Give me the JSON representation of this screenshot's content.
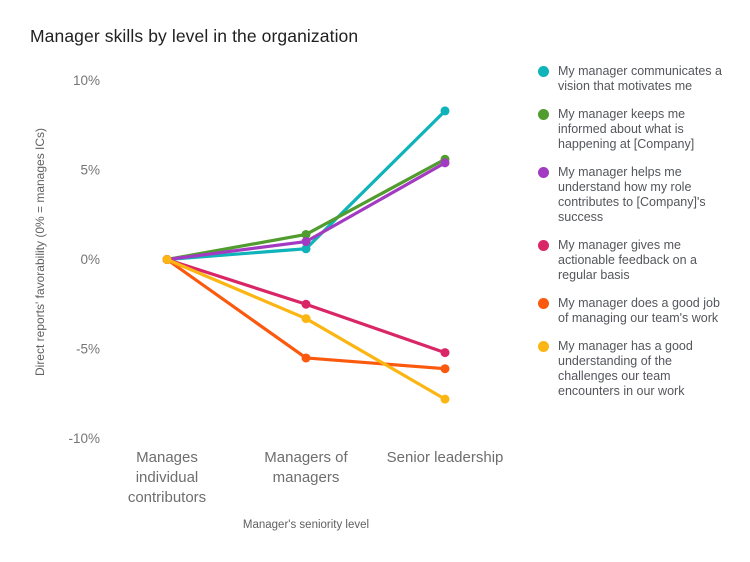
{
  "title": "Manager skills by level in the organization",
  "chart_data": {
    "type": "line",
    "title": "Manager skills by level in the organization",
    "xlabel": "Manager's seniority level",
    "ylabel": "Direct reports' favorability (0% = manages ICs)",
    "categories": [
      "Manages individual contributors",
      "Managers of managers",
      "Senior leadership"
    ],
    "category_lines": [
      [
        "Manages",
        "individual",
        "contributors"
      ],
      [
        "Managers of",
        "managers"
      ],
      [
        "Senior leadership"
      ]
    ],
    "ylim": [
      -10,
      10
    ],
    "yticks": [
      {
        "value": 10,
        "label": "10%"
      },
      {
        "value": 5,
        "label": "5%"
      },
      {
        "value": 0,
        "label": "0%"
      },
      {
        "value": -5,
        "label": "-5%"
      },
      {
        "value": -10,
        "label": "-10%"
      }
    ],
    "unit": "%",
    "grid": false,
    "legend_position": "right",
    "series": [
      {
        "name": "My manager communicates a vision that motivates me",
        "color": "#0fb3ba",
        "values": [
          0,
          0.6,
          8.3
        ]
      },
      {
        "name": "My manager keeps me informed about what is happening at [Company]",
        "color": "#519c2e",
        "values": [
          0,
          1.4,
          5.6
        ]
      },
      {
        "name": "My manager helps me understand how my role contributes to [Company]'s success",
        "color": "#a33bc2",
        "values": [
          0,
          1.0,
          5.4
        ]
      },
      {
        "name": "My manager gives me actionable feedback on a regular basis",
        "color": "#d92666",
        "values": [
          0,
          -2.5,
          -5.2
        ]
      },
      {
        "name": "My manager does a good job of managing our team's work",
        "color": "#fb5a0e",
        "values": [
          0,
          -5.5,
          -6.1
        ]
      },
      {
        "name": "My manager has a good understanding of the challenges our team encounters in our work",
        "color": "#fcb614",
        "values": [
          0,
          -3.3,
          -7.8
        ]
      }
    ]
  }
}
